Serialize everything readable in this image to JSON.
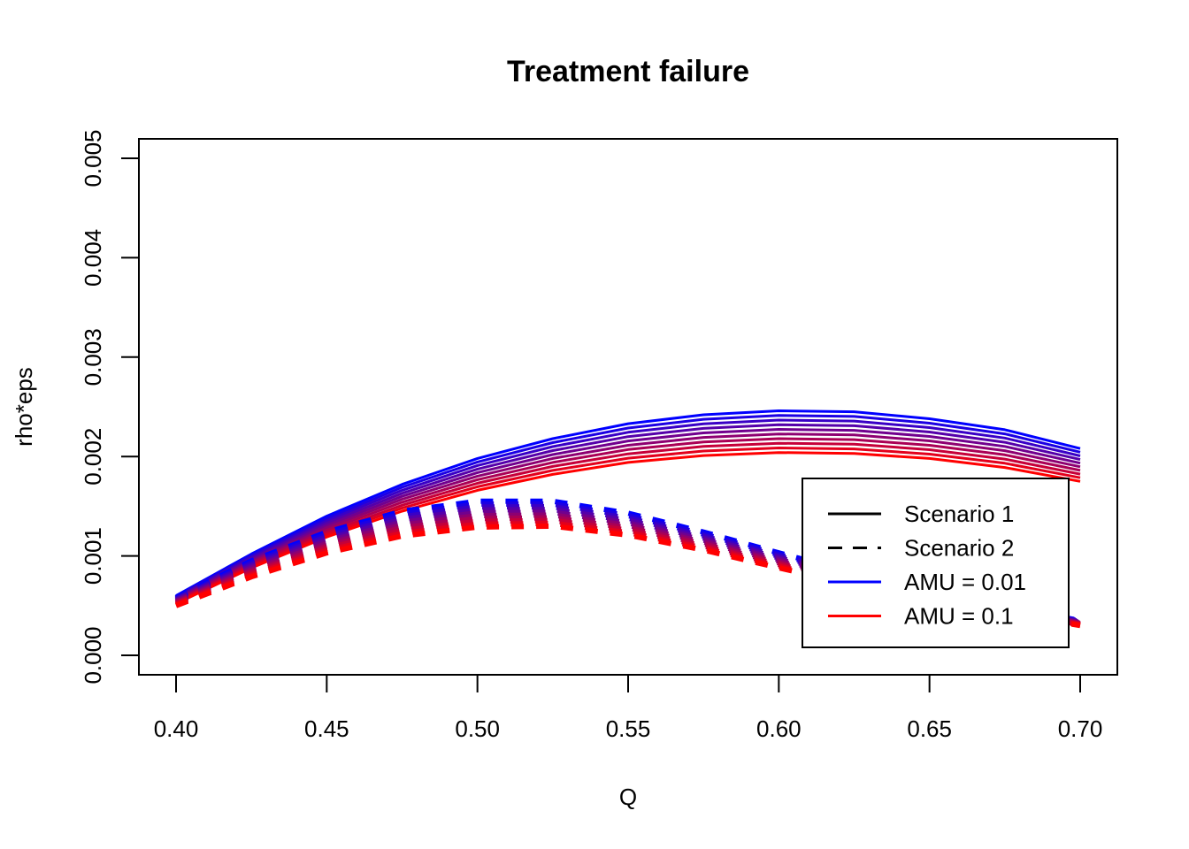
{
  "chart_data": {
    "type": "line",
    "title": "Treatment failure",
    "xlabel": "Q",
    "ylabel": "rho*eps",
    "xlim": [
      0.4,
      0.7
    ],
    "ylim": [
      0.0,
      0.005
    ],
    "xticks": [
      "0.40",
      "0.45",
      "0.50",
      "0.55",
      "0.60",
      "0.65",
      "0.70"
    ],
    "yticks": [
      "0.000",
      "0.001",
      "0.002",
      "0.003",
      "0.004",
      "0.005"
    ],
    "grid": false,
    "legend_position": "right",
    "colors": {
      "amu_low": "#0000ff",
      "amu_high": "#ff0000"
    },
    "x": [
      0.4,
      0.425,
      0.45,
      0.475,
      0.5,
      0.525,
      0.55,
      0.575,
      0.6,
      0.625,
      0.65,
      0.675,
      0.7
    ],
    "series": [
      {
        "name": "Scenario 1",
        "style": "solid",
        "amu_low_values": [
          0.0006,
          0.00102,
          0.0014,
          0.00172,
          0.00198,
          0.00218,
          0.00233,
          0.00242,
          0.00246,
          0.00245,
          0.00238,
          0.00227,
          0.00208
        ],
        "amu_high_values": [
          0.00052,
          0.00088,
          0.00119,
          0.00145,
          0.00166,
          0.00182,
          0.00194,
          0.00201,
          0.00204,
          0.00203,
          0.00198,
          0.00189,
          0.00175
        ]
      },
      {
        "name": "Scenario 2",
        "style": "dashed",
        "amu_low_values": [
          0.00058,
          0.00095,
          0.00124,
          0.00145,
          0.00155,
          0.00155,
          0.00143,
          0.00124,
          0.00103,
          0.00083,
          0.00064,
          0.00049,
          0.00035
        ],
        "amu_high_values": [
          0.0005,
          0.00079,
          0.00103,
          0.0012,
          0.00129,
          0.0013,
          0.00121,
          0.00106,
          0.00088,
          0.00071,
          0.00056,
          0.00043,
          0.0003
        ]
      }
    ],
    "amu_levels": 10,
    "legend": [
      {
        "label": "Scenario 1",
        "style": "solid",
        "color": "#000000"
      },
      {
        "label": "Scenario 2",
        "style": "dashed",
        "color": "#000000"
      },
      {
        "label": "AMU = 0.01",
        "style": "solid",
        "color": "#0000ff"
      },
      {
        "label": "AMU = 0.1",
        "style": "solid",
        "color": "#ff0000"
      }
    ]
  }
}
